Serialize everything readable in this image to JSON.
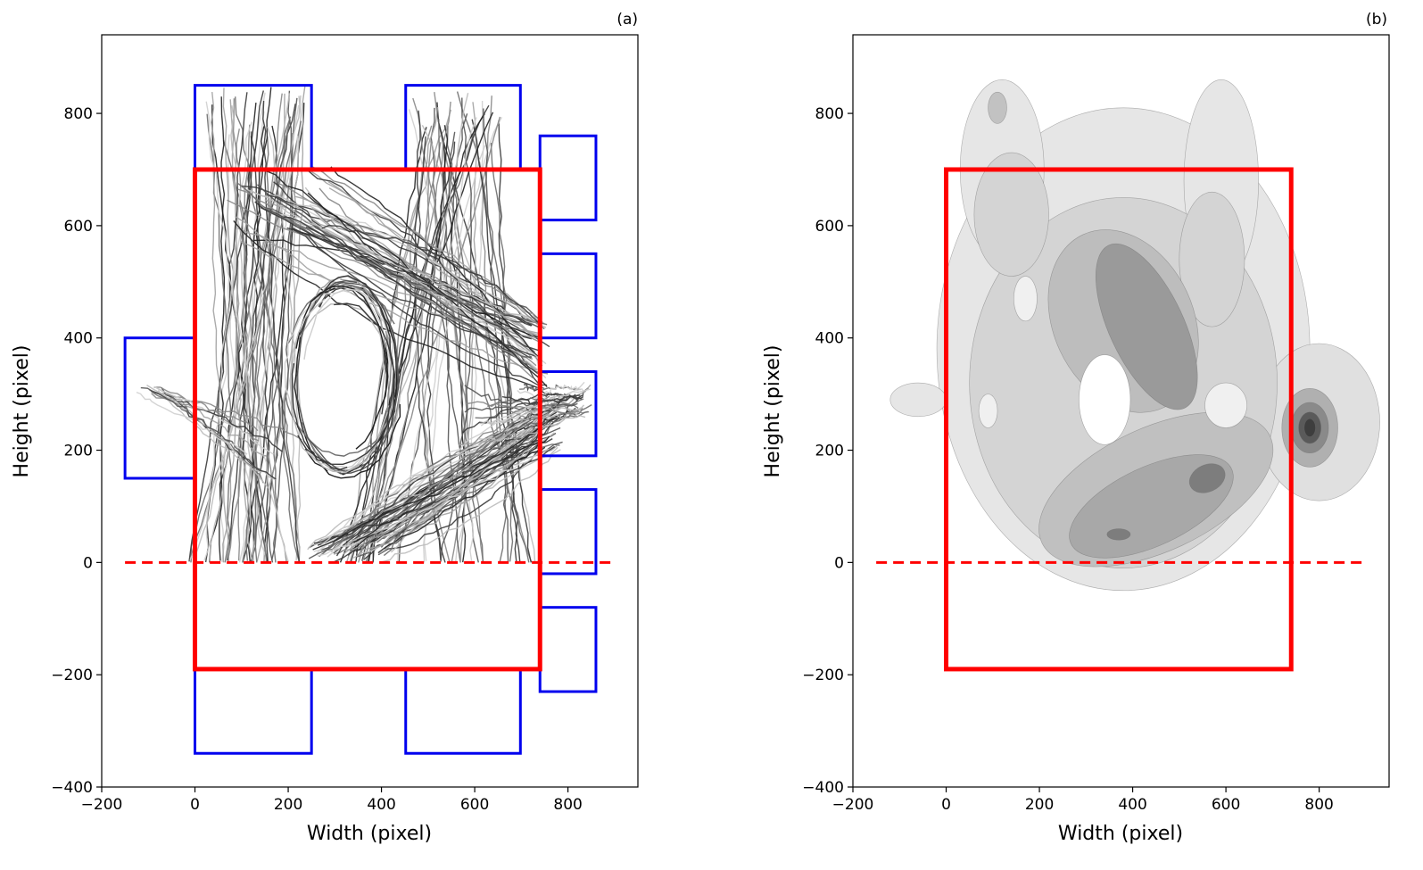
{
  "chart_data": [
    {
      "type": "line",
      "panel_label": "(a)",
      "xlabel": "Width (pixel)",
      "ylabel": "Height (pixel)",
      "xlim": [
        -200,
        950
      ],
      "ylim": [
        -400,
        940
      ],
      "xticks": [
        -200,
        0,
        200,
        400,
        600,
        800
      ],
      "yticks": [
        -400,
        -200,
        0,
        200,
        400,
        600,
        800
      ],
      "xtick_labels": [
        "−200",
        "0",
        "200",
        "400",
        "600",
        "800"
      ],
      "ytick_labels": [
        "−400",
        "−200",
        "0",
        "200",
        "400",
        "600",
        "800"
      ],
      "grid": false,
      "colors": {
        "roi": "#ff0000",
        "zones": "#0000ee",
        "tracks": "#555555"
      },
      "roi_rect": {
        "x0": 0,
        "y0": -190,
        "x1": 740,
        "y1": 700
      },
      "baseline": {
        "y": 0,
        "x0": -150,
        "x1": 900,
        "style": "dashed"
      },
      "zones": [
        {
          "x0": 0,
          "y0": 700,
          "x1": 250,
          "y1": 850
        },
        {
          "x0": 452,
          "y0": 700,
          "x1": 698,
          "y1": 850
        },
        {
          "x0": -150,
          "y0": 150,
          "x1": 0,
          "y1": 400
        },
        {
          "x0": 740,
          "y0": 610,
          "x1": 860,
          "y1": 760
        },
        {
          "x0": 740,
          "y0": 400,
          "x1": 860,
          "y1": 550
        },
        {
          "x0": 740,
          "y0": 190,
          "x1": 860,
          "y1": 340
        },
        {
          "x0": 740,
          "y0": -20,
          "x1": 860,
          "y1": 130
        },
        {
          "x0": 740,
          "y0": -230,
          "x1": 860,
          "y1": -80
        },
        {
          "x0": 0,
          "y0": -340,
          "x1": 250,
          "y1": -190
        },
        {
          "x0": 452,
          "y0": -340,
          "x1": 698,
          "y1": -190
        }
      ]
    },
    {
      "type": "heatmap",
      "subtype": "density-contour",
      "panel_label": "(b)",
      "xlabel": "Width (pixel)",
      "ylabel": "Height (pixel)",
      "xlim": [
        -200,
        950
      ],
      "ylim": [
        -400,
        940
      ],
      "xticks": [
        -200,
        0,
        200,
        400,
        600,
        800
      ],
      "yticks": [
        -400,
        -200,
        0,
        200,
        400,
        600,
        800
      ],
      "xtick_labels": [
        "−200",
        "0",
        "200",
        "400",
        "600",
        "800"
      ],
      "ytick_labels": [
        "−400",
        "−200",
        "0",
        "200",
        "400",
        "600",
        "800"
      ],
      "grid": false,
      "colors": {
        "roi": "#ff0000",
        "density": "#808080"
      },
      "roi_rect": {
        "x0": 0,
        "y0": -190,
        "x1": 740,
        "y1": 700
      },
      "baseline": {
        "y": 0,
        "x0": -150,
        "x1": 900,
        "style": "dashed"
      },
      "density_hotspots": [
        {
          "x": 780,
          "y": 240,
          "level": "highest"
        },
        {
          "x": 340,
          "y": 500,
          "level": "high"
        },
        {
          "x": 560,
          "y": 150,
          "level": "high"
        },
        {
          "x": 100,
          "y": 790,
          "level": "medium"
        }
      ]
    }
  ]
}
